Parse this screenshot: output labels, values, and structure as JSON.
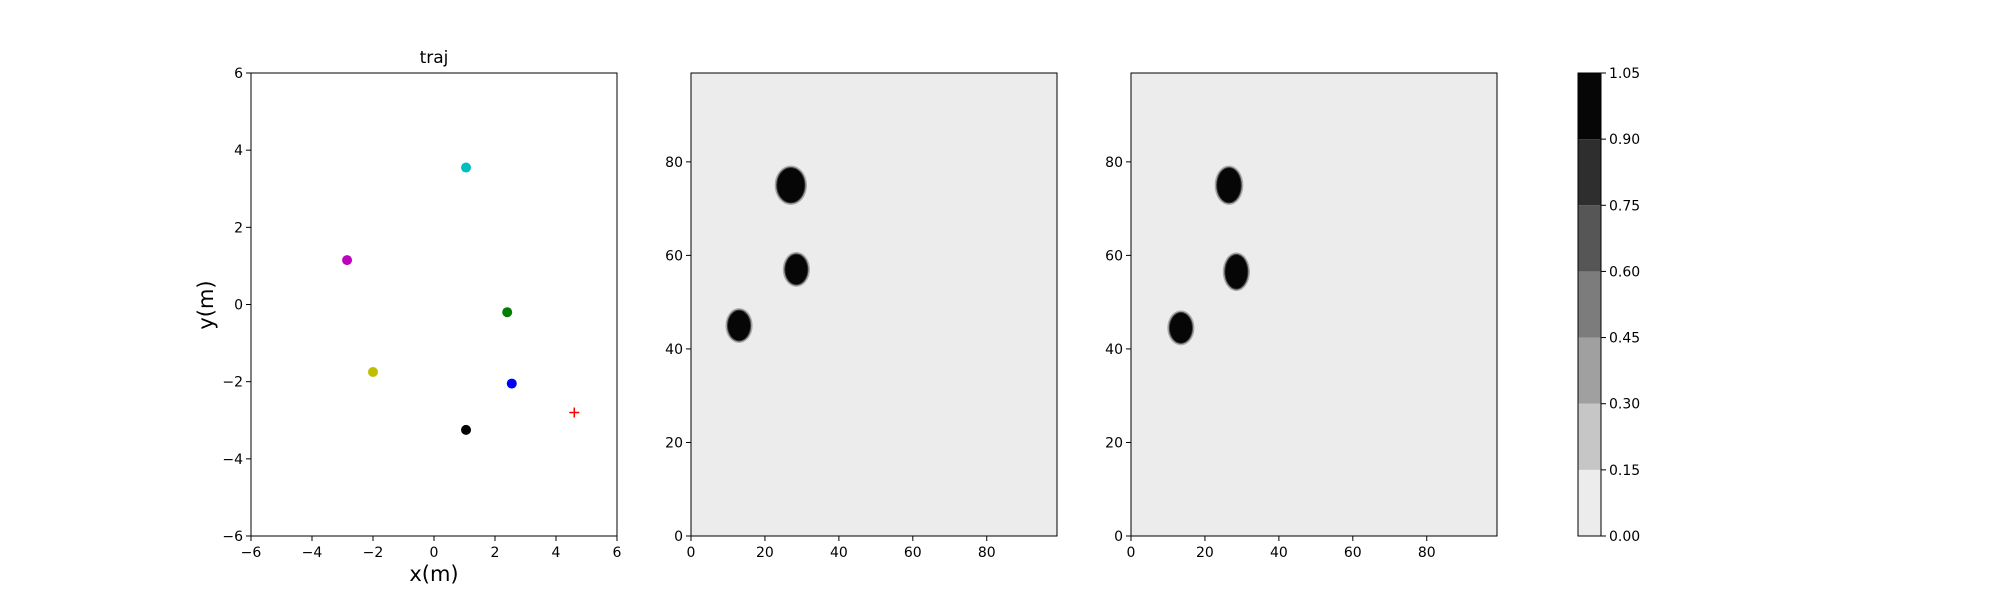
{
  "chart_data": [
    {
      "type": "scatter",
      "title": "traj",
      "xlabel": "x(m)",
      "ylabel": "y(m)",
      "xlim": [
        -6,
        6
      ],
      "ylim": [
        -6,
        6
      ],
      "xticks": [
        "−6",
        "−4",
        "−2",
        "0",
        "2",
        "4",
        "6"
      ],
      "yticks": [
        "−6",
        "−4",
        "−2",
        "0",
        "2",
        "4",
        "6"
      ],
      "grid": false,
      "points": [
        {
          "x": 1.05,
          "y": 3.55,
          "color": "#00bfbf",
          "marker": "dot"
        },
        {
          "x": -2.85,
          "y": 1.15,
          "color": "#bf00bf",
          "marker": "dot"
        },
        {
          "x": 2.4,
          "y": -0.2,
          "color": "#008000",
          "marker": "dot"
        },
        {
          "x": -2.0,
          "y": -1.75,
          "color": "#bfbf00",
          "marker": "dot"
        },
        {
          "x": 2.55,
          "y": -2.05,
          "color": "#0000ff",
          "marker": "dot"
        },
        {
          "x": 1.05,
          "y": -3.25,
          "color": "#000000",
          "marker": "dot"
        },
        {
          "x": 4.6,
          "y": -2.8,
          "color": "#ff0000",
          "marker": "plus"
        }
      ]
    },
    {
      "type": "heatmap",
      "xlim": [
        0,
        99
      ],
      "ylim": [
        0,
        99
      ],
      "xticks": [
        "0",
        "20",
        "40",
        "60",
        "80"
      ],
      "yticks": [
        "0",
        "20",
        "40",
        "60",
        "80"
      ],
      "background_value": 0.08,
      "blobs": [
        {
          "cx": 27,
          "cy": 75,
          "rx": 3.7,
          "ry": 3.7,
          "value": 1.0
        },
        {
          "cx": 28.5,
          "cy": 57,
          "rx": 3.0,
          "ry": 3.2,
          "value": 1.0
        },
        {
          "cx": 13,
          "cy": 45,
          "rx": 3.0,
          "ry": 3.2,
          "value": 1.0
        }
      ]
    },
    {
      "type": "heatmap",
      "xlim": [
        0,
        99
      ],
      "ylim": [
        0,
        99
      ],
      "xticks": [
        "0",
        "20",
        "40",
        "60",
        "80"
      ],
      "yticks": [
        "0",
        "20",
        "40",
        "60",
        "80"
      ],
      "background_value": 0.08,
      "blobs": [
        {
          "cx": 26.5,
          "cy": 75,
          "rx": 3.2,
          "ry": 3.7,
          "value": 1.0
        },
        {
          "cx": 28.5,
          "cy": 56.5,
          "rx": 3.0,
          "ry": 3.6,
          "value": 1.0
        },
        {
          "cx": 13.5,
          "cy": 44.5,
          "rx": 3.0,
          "ry": 3.2,
          "value": 1.0
        }
      ]
    }
  ],
  "colorbar": {
    "levels": [
      0.0,
      0.15,
      0.3,
      0.45,
      0.6,
      0.75,
      0.9,
      1.05
    ],
    "tick_labels": [
      "0.00",
      "0.15",
      "0.30",
      "0.45",
      "0.60",
      "0.75",
      "0.90",
      "1.05"
    ],
    "colors": [
      "#ececec",
      "#c6c6c6",
      "#a0a0a0",
      "#7c7c7c",
      "#565656",
      "#2e2e2e",
      "#060606"
    ]
  }
}
